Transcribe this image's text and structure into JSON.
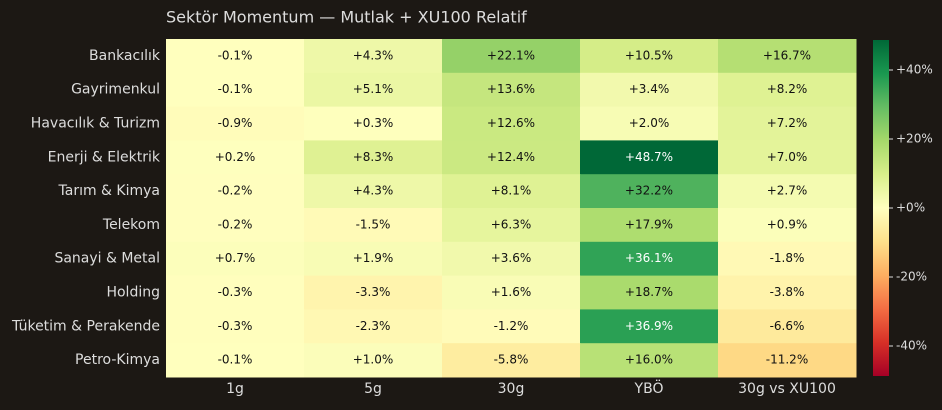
{
  "chart_data": {
    "type": "heatmap",
    "title": "Sektör Momentum — Mutlak + XU100 Relatif",
    "rows": [
      "Bankacılık",
      "Gayrimenkul",
      "Havacılık & Turizm",
      "Enerji & Elektrik",
      "Tarım & Kimya",
      "Telekom",
      "Sanayi & Metal",
      "Holding",
      "Tüketim & Perakende",
      "Petro-Kimya"
    ],
    "columns": [
      "1g",
      "5g",
      "30g",
      "YBÖ",
      "30g vs XU100"
    ],
    "values": [
      [
        -0.1,
        4.3,
        22.1,
        10.5,
        16.7
      ],
      [
        -0.1,
        5.1,
        13.6,
        3.4,
        8.2
      ],
      [
        -0.9,
        0.3,
        12.6,
        2.0,
        7.2
      ],
      [
        0.2,
        8.3,
        12.4,
        48.7,
        7.0
      ],
      [
        -0.2,
        4.3,
        8.1,
        32.2,
        2.7
      ],
      [
        -0.2,
        -1.5,
        6.3,
        17.9,
        0.9
      ],
      [
        0.7,
        1.9,
        3.6,
        36.1,
        -1.8
      ],
      [
        -0.3,
        -3.3,
        1.6,
        18.7,
        -3.8
      ],
      [
        -0.3,
        -2.3,
        -1.2,
        36.9,
        -6.6
      ],
      [
        -0.1,
        1.0,
        -5.8,
        16.0,
        -11.2
      ]
    ],
    "value_labels": [
      [
        "-0.1%",
        "+4.3%",
        "+22.1%",
        "+10.5%",
        "+16.7%"
      ],
      [
        "-0.1%",
        "+5.1%",
        "+13.6%",
        "+3.4%",
        "+8.2%"
      ],
      [
        "-0.9%",
        "+0.3%",
        "+12.6%",
        "+2.0%",
        "+7.2%"
      ],
      [
        "+0.2%",
        "+8.3%",
        "+12.4%",
        "+48.7%",
        "+7.0%"
      ],
      [
        "-0.2%",
        "+4.3%",
        "+8.1%",
        "+32.2%",
        "+2.7%"
      ],
      [
        "-0.2%",
        "-1.5%",
        "+6.3%",
        "+17.9%",
        "+0.9%"
      ],
      [
        "+0.7%",
        "+1.9%",
        "+3.6%",
        "+36.1%",
        "-1.8%"
      ],
      [
        "-0.3%",
        "-3.3%",
        "+1.6%",
        "+18.7%",
        "-3.8%"
      ],
      [
        "-0.3%",
        "-2.3%",
        "-1.2%",
        "+36.9%",
        "-6.6%"
      ],
      [
        "-0.1%",
        "+1.0%",
        "-5.8%",
        "+16.0%",
        "-11.2%"
      ]
    ],
    "clim": [
      -48.7,
      48.7
    ],
    "cticks": [
      {
        "value": 40,
        "label": "+40%"
      },
      {
        "value": 20,
        "label": "+20%"
      },
      {
        "value": 0,
        "label": "+0%"
      },
      {
        "value": -20,
        "label": "-20%"
      },
      {
        "value": -40,
        "label": "-40%"
      }
    ],
    "colormap": [
      "#a50026",
      "#d73027",
      "#f46d43",
      "#fdae61",
      "#fee08b",
      "#ffffbf",
      "#d9ef8b",
      "#a6d96a",
      "#66bd63",
      "#1a9850",
      "#006837"
    ]
  }
}
